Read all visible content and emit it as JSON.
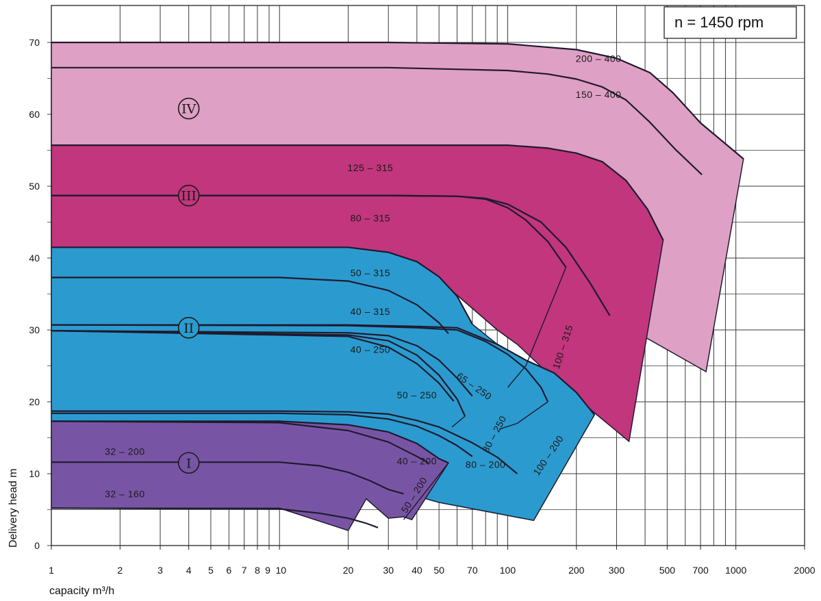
{
  "chart_data": {
    "type": "area",
    "title": "",
    "annotation": "n = 1450 rpm",
    "xlabel": "capacity m³/h",
    "ylabel": "Delivery head m",
    "x_scale": "log",
    "xlim": [
      1,
      2000
    ],
    "ylim": [
      0,
      70
    ],
    "x_ticks": [
      1,
      2,
      3,
      4,
      5,
      6,
      7,
      8,
      9,
      10,
      20,
      30,
      40,
      50,
      70,
      100,
      200,
      300,
      500,
      700,
      1000,
      2000
    ],
    "x_tick_labels": [
      "1",
      "2",
      "3",
      "4",
      "5",
      "6",
      "7",
      "8",
      "9",
      "10",
      "20",
      "30",
      "40",
      "50",
      "70",
      "100",
      "200",
      "300",
      "500",
      "700",
      "1000",
      "2000"
    ],
    "y_ticks": [
      0,
      10,
      20,
      30,
      40,
      50,
      60,
      70
    ],
    "y_tick_labels": [
      "0",
      "10",
      "20",
      "30",
      "40",
      "50",
      "60",
      "70"
    ],
    "grid": true,
    "colors": {
      "IV": "#dea0c4",
      "III": "#c1367d",
      "II": "#2b9bcf",
      "I": "#7855a4",
      "line": "#1f1a2e"
    },
    "groups": [
      {
        "name": "IV",
        "color_key": "IV",
        "outline": [
          [
            1,
            70
          ],
          [
            30,
            70
          ],
          [
            100,
            69.8
          ],
          [
            200,
            69
          ],
          [
            300,
            67.8
          ],
          [
            420,
            65.8
          ],
          [
            530,
            63
          ],
          [
            700,
            58.8
          ],
          [
            1080,
            53.8
          ],
          [
            740,
            24.2
          ],
          [
            290,
            31.5
          ],
          [
            200,
            27
          ],
          [
            140,
            26
          ],
          [
            110,
            33
          ],
          [
            70,
            40
          ],
          [
            40,
            46
          ],
          [
            20,
            51
          ],
          [
            10,
            54
          ],
          [
            1,
            55.7
          ]
        ]
      },
      {
        "name": "III",
        "color_key": "III",
        "outline": [
          [
            1,
            55.7
          ],
          [
            30,
            55.7
          ],
          [
            100,
            55.7
          ],
          [
            150,
            55.3
          ],
          [
            200,
            54.6
          ],
          [
            260,
            53.4
          ],
          [
            330,
            50.8
          ],
          [
            410,
            46.8
          ],
          [
            480,
            42.5
          ],
          [
            340,
            14.5
          ],
          [
            210,
            20
          ],
          [
            150,
            24
          ],
          [
            110,
            28
          ],
          [
            90,
            30
          ],
          [
            70,
            33
          ],
          [
            50,
            37
          ],
          [
            30,
            40
          ],
          [
            20,
            41
          ],
          [
            10,
            41.5
          ],
          [
            1,
            41.5
          ]
        ]
      },
      {
        "name": "II",
        "color_key": "II",
        "outline": [
          [
            1,
            41.5
          ],
          [
            20,
            41.5
          ],
          [
            30,
            40.8
          ],
          [
            40,
            39.5
          ],
          [
            50,
            37.4
          ],
          [
            60,
            34.7
          ],
          [
            70,
            30.8
          ],
          [
            90,
            28
          ],
          [
            120,
            25.8
          ],
          [
            160,
            24
          ],
          [
            200,
            21.3
          ],
          [
            240,
            18.2
          ],
          [
            130,
            3.5
          ],
          [
            50,
            6
          ],
          [
            30,
            8
          ],
          [
            20,
            11
          ],
          [
            10,
            15
          ],
          [
            1,
            17.3
          ]
        ]
      },
      {
        "name": "I",
        "color_key": "I",
        "outline": [
          [
            1,
            17.3
          ],
          [
            10,
            17.3
          ],
          [
            20,
            16.8
          ],
          [
            30,
            15.8
          ],
          [
            40,
            14.2
          ],
          [
            50,
            12.1
          ],
          [
            55,
            11.5
          ],
          [
            38,
            3.6
          ],
          [
            35,
            4
          ],
          [
            30,
            3.8
          ],
          [
            24,
            6.5
          ],
          [
            20,
            2.1
          ],
          [
            10,
            5.2
          ],
          [
            1,
            5.2
          ]
        ]
      }
    ],
    "series": [
      {
        "name": "200-400",
        "label": "200 – 400",
        "x": [
          1,
          30,
          100,
          200,
          300,
          420,
          530,
          700,
          1080
        ],
        "y": [
          70,
          70,
          69.8,
          69,
          67.8,
          65.8,
          63,
          58.8,
          53.8
        ],
        "end_x": 1080,
        "end_y": 53.8
      },
      {
        "name": "150-400",
        "label": "150 – 400",
        "x": [
          1,
          30,
          100,
          150,
          200,
          260,
          330,
          420,
          540,
          710
        ],
        "y": [
          66.5,
          66.5,
          66.1,
          65.6,
          64.9,
          63.8,
          62,
          58.9,
          55.2,
          51.6
        ],
        "end_x": 710,
        "end_y": 51.6
      },
      {
        "name": "125-315",
        "label": "125 – 315",
        "x": [
          1,
          30,
          100,
          150,
          200,
          260,
          330,
          410,
          480
        ],
        "y": [
          55.7,
          55.7,
          55.7,
          55.3,
          54.6,
          53.4,
          50.8,
          46.8,
          42.5
        ],
        "end_x": 480,
        "end_y": 42.5
      },
      {
        "name": "100-315",
        "label": "100 – 315",
        "x": [
          1,
          30,
          60,
          80,
          100,
          140,
          180,
          230,
          280
        ],
        "y": [
          48.7,
          48.7,
          48.6,
          48.3,
          47.5,
          45,
          41.5,
          36.5,
          32
        ],
        "end_x": 280,
        "end_y": 32
      },
      {
        "name": "80-315",
        "label": "80 – 315",
        "x": [
          1,
          30,
          60,
          80,
          100,
          120,
          150,
          180
        ],
        "y": [
          48.7,
          48.7,
          48.6,
          48.2,
          47,
          45.3,
          42.3,
          38.7
        ],
        "end_x": 180,
        "end_y": 38.7
      },
      {
        "name": "50-315",
        "label": "50 – 315",
        "x": [
          1,
          20,
          30,
          40,
          50,
          60,
          70
        ],
        "y": [
          41.5,
          41.5,
          40.8,
          39.5,
          37.4,
          34.7,
          30.8
        ],
        "end_x": 70,
        "end_y": 30.8
      },
      {
        "name": "40-315",
        "label": "40 – 315",
        "x": [
          1,
          10,
          20,
          30,
          40,
          50,
          55
        ],
        "y": [
          37.3,
          37.3,
          36.8,
          35.5,
          33.5,
          31,
          29.5
        ],
        "end_x": 55,
        "end_y": 29.5
      },
      {
        "name": "100-200",
        "label": "100 – 200",
        "x": [
          1,
          20,
          40,
          60,
          90,
          120,
          160,
          200,
          240
        ],
        "y": [
          30.7,
          30.7,
          30.5,
          30.3,
          28,
          25.8,
          24,
          21.3,
          18.2
        ],
        "end_x": 240,
        "end_y": 18.2
      },
      {
        "name": "80-200",
        "label": "80 – 200",
        "x": [
          1,
          20,
          40,
          60,
          80,
          100,
          120,
          140,
          150
        ],
        "y": [
          30.7,
          30.6,
          30.3,
          30,
          28.4,
          26.6,
          24.6,
          22,
          20
        ],
        "end_x": 150,
        "end_y": 20
      },
      {
        "name": "65-250",
        "label": "65 – 250",
        "x": [
          1,
          20,
          30,
          40,
          50,
          60,
          70
        ],
        "y": [
          29.9,
          29.6,
          29.2,
          27.8,
          25.8,
          23.3,
          20.8
        ],
        "end_x": 70,
        "end_y": 20.8
      },
      {
        "name": "50-250",
        "label": "50 – 250",
        "x": [
          1,
          20,
          30,
          40,
          50,
          60,
          65
        ],
        "y": [
          29.9,
          29.3,
          28.5,
          26.5,
          23.7,
          20.4,
          18
        ],
        "end_x": 65,
        "end_y": 18
      },
      {
        "name": "40-250",
        "label": "40 – 250",
        "x": [
          1,
          20,
          30,
          40,
          50,
          58
        ],
        "y": [
          29.9,
          29.1,
          27.6,
          25.3,
          22.6,
          20.1
        ],
        "end_x": 58,
        "end_y": 20.1
      },
      {
        "name": "80-200-low",
        "label": "80 – 200",
        "x": [
          1,
          10,
          20,
          30,
          40,
          50,
          70,
          90,
          110
        ],
        "y": [
          18.7,
          18.7,
          18.6,
          18.3,
          17.4,
          16.5,
          14.3,
          12.3,
          10
        ],
        "end_x": 110,
        "end_y": 10
      },
      {
        "name": "65-200",
        "label": "",
        "x": [
          1,
          10,
          20,
          30,
          40,
          50,
          60,
          70
        ],
        "y": [
          18.4,
          18.4,
          18.2,
          17.6,
          16.6,
          15.3,
          13.9,
          12.4
        ],
        "end_x": 70,
        "end_y": 12.4
      },
      {
        "name": "50-200",
        "label": "50 – 200",
        "x": [
          1,
          10,
          20,
          30,
          40,
          50,
          55
        ],
        "y": [
          17.3,
          17.3,
          16.8,
          15.8,
          14.2,
          12.1,
          11.5
        ],
        "end_x": 55,
        "end_y": 11.5
      },
      {
        "name": "40-200",
        "label": "40 – 200",
        "x": [
          1,
          10,
          20,
          30,
          40,
          45
        ],
        "y": [
          17.3,
          17.1,
          16,
          14.4,
          12.4,
          11.5
        ],
        "end_x": 45,
        "end_y": 11.5
      },
      {
        "name": "32-200",
        "label": "32 – 200",
        "x": [
          1,
          10,
          15,
          20,
          25,
          30,
          35
        ],
        "y": [
          11.6,
          11.6,
          11.1,
          10.2,
          9,
          7.8,
          7.2
        ],
        "end_x": 35,
        "end_y": 7.2
      },
      {
        "name": "32-160",
        "label": "32 – 160",
        "x": [
          1,
          10,
          15,
          20,
          24,
          27
        ],
        "y": [
          5.2,
          5.1,
          4.5,
          3.8,
          3.1,
          2.5
        ],
        "end_x": 27,
        "end_y": 2.5
      }
    ],
    "group_labels": [
      {
        "text": "IV",
        "x": 4,
        "y": 60.8
      },
      {
        "text": "III",
        "x": 4,
        "y": 48.7
      },
      {
        "text": "II",
        "x": 4,
        "y": 30.3
      },
      {
        "text": "I",
        "x": 4,
        "y": 11.5
      }
    ],
    "curve_labels": [
      {
        "text": "200 – 400",
        "x": 250,
        "y": 67.3,
        "rot": 0
      },
      {
        "text": "150 – 400",
        "x": 250,
        "y": 62.3,
        "rot": 0
      },
      {
        "text": "125 – 315",
        "x": 25,
        "y": 52.1,
        "rot": 0
      },
      {
        "text": "80 – 315",
        "x": 25,
        "y": 45.1,
        "rot": 0
      },
      {
        "text": "100 – 315",
        "x": 180,
        "y": 27.5,
        "rot": -72
      },
      {
        "text": "50 – 315",
        "x": 25,
        "y": 37.5,
        "rot": 0
      },
      {
        "text": "40 – 315",
        "x": 25,
        "y": 32.1,
        "rot": 0
      },
      {
        "text": "40 – 250",
        "x": 25,
        "y": 26.8,
        "rot": 0
      },
      {
        "text": "65 – 250",
        "x": 70,
        "y": 21.8,
        "rot": 35
      },
      {
        "text": "50 – 250",
        "x": 40,
        "y": 20.5,
        "rot": 0
      },
      {
        "text": "80 – 250",
        "x": 90,
        "y": 15.3,
        "rot": -62
      },
      {
        "text": "100 – 200",
        "x": 155,
        "y": 12.3,
        "rot": -56
      },
      {
        "text": "80 – 200",
        "x": 80,
        "y": 10.8,
        "rot": 0
      },
      {
        "text": "40 – 200",
        "x": 40,
        "y": 11.3,
        "rot": 0
      },
      {
        "text": "50 – 200",
        "x": 40,
        "y": 6.8,
        "rot": -58
      },
      {
        "text": "32 – 200",
        "x": 2.1,
        "y": 12.6,
        "rot": 0
      },
      {
        "text": "32 – 160",
        "x": 2.1,
        "y": 6.7,
        "rot": 0
      }
    ],
    "extra_lines": [
      {
        "name": "100-315-lower",
        "x": [
          180,
          120,
          100
        ],
        "y": [
          38.7,
          25,
          22
        ]
      },
      {
        "name": "50-250-lower",
        "x": [
          65,
          57
        ],
        "y": [
          18,
          16.5
        ]
      },
      {
        "name": "80-250-lower",
        "x": [
          150,
          110,
          92
        ],
        "y": [
          20,
          17,
          16.2
        ]
      },
      {
        "name": "50-200-lower",
        "x": [
          55,
          35
        ],
        "y": [
          11.5,
          3.6
        ]
      }
    ]
  }
}
